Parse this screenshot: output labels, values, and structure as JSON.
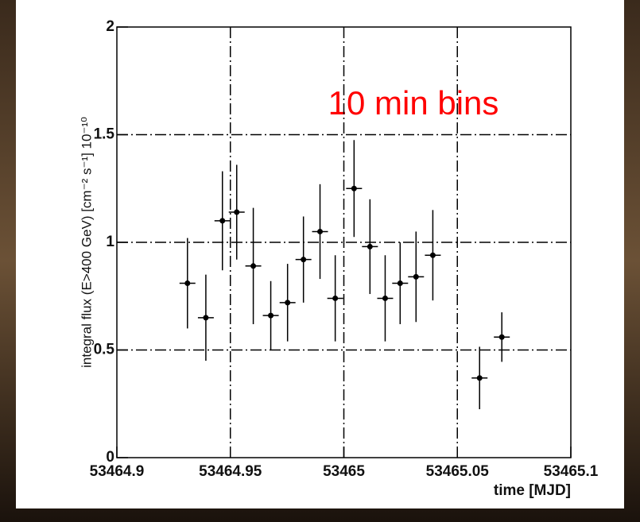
{
  "chart_data": {
    "type": "scatter",
    "y_label": "integral flux (E>400 GeV) [cm⁻² s⁻¹] 10⁻¹⁰",
    "x_label": "time [MJD]",
    "annotation": "10 min bins",
    "annotation_color": "#ff0000",
    "color": "#000000",
    "x": [
      53464.9311,
      53464.9392,
      53464.9465,
      53464.9528,
      53464.9601,
      53464.9678,
      53464.9752,
      53464.9822,
      53464.9895,
      53464.9962,
      53465.0045,
      53465.0115,
      53465.0182,
      53465.0248,
      53465.0318,
      53465.0392,
      53465.0598,
      53465.0696
    ],
    "values": [
      0.81,
      0.65,
      1.1,
      1.14,
      0.89,
      0.66,
      0.72,
      0.92,
      1.05,
      0.74,
      1.25,
      0.98,
      0.74,
      0.81,
      0.84,
      0.94,
      0.37,
      0.56
    ],
    "yerr": [
      0.21,
      0.2,
      0.23,
      0.22,
      0.27,
      0.16,
      0.18,
      0.2,
      0.22,
      0.2,
      0.225,
      0.22,
      0.2,
      0.19,
      0.21,
      0.21,
      0.145,
      0.115
    ],
    "xerr": 0.0035,
    "xlim": [
      53464.9,
      53465.1
    ],
    "xticks": [
      53464.9,
      53464.95,
      53465,
      53465.05,
      53465.1
    ],
    "ylim": [
      0,
      2
    ],
    "yticks": [
      0,
      0.5,
      1,
      1.5,
      2
    ],
    "grid": true
  }
}
